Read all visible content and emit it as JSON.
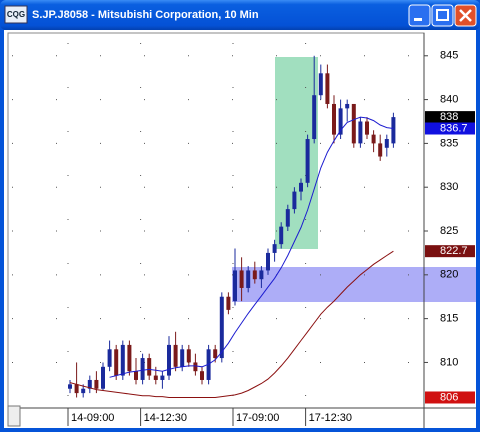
{
  "chart_data": {
    "type": "candlestick",
    "title": "S.JP.J8058 - Mitsubishi Corporation, 10 Min",
    "categories": [
      "14-09:00",
      null,
      null,
      null,
      null,
      null,
      null,
      null,
      null,
      null,
      null,
      "14-12:30",
      null,
      null,
      null,
      null,
      null,
      null,
      null,
      null,
      null,
      null,
      null,
      null,
      null,
      "17-09:00",
      null,
      null,
      null,
      null,
      null,
      null,
      null,
      null,
      null,
      null,
      "17-12:30",
      null,
      null,
      null,
      null,
      null,
      null,
      null,
      null,
      null,
      null,
      null,
      null,
      null
    ],
    "open": [
      807,
      807.5,
      806.5,
      807,
      808,
      807,
      809.5,
      811.5,
      808.5,
      812,
      809,
      808,
      810.5,
      808.5,
      808,
      808.5,
      812,
      809.5,
      811.5,
      810,
      809,
      808,
      811.5,
      810.5,
      817.5,
      817,
      820.5,
      818.5,
      820.5,
      819.5,
      820.5,
      822.5,
      823.5,
      825.5,
      827.5,
      829.5,
      830.5,
      835.5,
      840.5,
      843,
      839.5,
      836,
      839,
      839.5,
      835,
      837.5,
      836,
      835,
      834.5,
      835
    ],
    "high": [
      808,
      810,
      807.5,
      808.5,
      809,
      810,
      812.5,
      812,
      812.5,
      812.5,
      810.5,
      811,
      811,
      809.5,
      809,
      813,
      813.5,
      812,
      812,
      811,
      809.5,
      812,
      812,
      818,
      818,
      823,
      822,
      821,
      821.5,
      821,
      823,
      824,
      826,
      828,
      830,
      831,
      836,
      845,
      844,
      844,
      840.5,
      840,
      840,
      839.5,
      838,
      838,
      836.5,
      836,
      836,
      838.5
    ],
    "low": [
      806.5,
      806,
      806,
      806.5,
      806.5,
      806.8,
      809,
      808,
      808,
      808.5,
      807.5,
      807.5,
      808,
      807.5,
      807,
      808,
      809,
      809,
      809.5,
      808.5,
      807.5,
      807.5,
      810,
      810,
      815.5,
      816.5,
      817,
      818,
      819,
      818.5,
      820,
      821.5,
      823,
      825,
      827,
      828.5,
      830,
      835,
      840,
      839,
      835,
      835.5,
      837.5,
      834.5,
      834.5,
      835.5,
      834,
      833,
      833.5,
      834.5
    ],
    "close": [
      807.5,
      806.5,
      807,
      808,
      807,
      809.5,
      811.5,
      808.5,
      812,
      809,
      808,
      810.5,
      808.5,
      808,
      808.5,
      812,
      809.5,
      811.5,
      810,
      809,
      808,
      811.5,
      810.5,
      817.5,
      816,
      820.5,
      818.5,
      820.5,
      819.5,
      820.5,
      822.5,
      823.5,
      825.5,
      827.5,
      829.5,
      830.5,
      835.5,
      840.5,
      843,
      839.5,
      836,
      839,
      839.5,
      835,
      837.5,
      836,
      835,
      833.5,
      835.5,
      838
    ],
    "up_color": "#1a2a9c",
    "down_color": "#7a1a1a",
    "lines": [
      {
        "color": "#1c1cd0",
        "values": [
          null,
          null,
          null,
          null,
          null,
          null,
          808.3,
          808.5,
          808.7,
          808.9,
          809,
          809.1,
          809.2,
          809.1,
          809,
          809.2,
          809.4,
          809.5,
          809.6,
          809.6,
          809.5,
          809.8,
          810.3,
          811.2,
          812.2,
          813.4,
          814.5,
          815.6,
          816.6,
          817.6,
          818.6,
          819.6,
          820.8,
          822.2,
          823.8,
          825.4,
          827.4,
          829.8,
          832.2,
          834,
          835.3,
          836.5,
          837.4,
          837.7,
          838,
          837.9,
          837.6,
          837.1,
          836.8,
          836.7
        ]
      },
      {
        "color": "#8b1010",
        "values": [
          807.7,
          807.5,
          807.3,
          807.1,
          806.9,
          806.8,
          806.7,
          806.6,
          806.5,
          806.4,
          806.3,
          806.2,
          806.2,
          806.1,
          806.1,
          806,
          806,
          806,
          806,
          806,
          806,
          806,
          806,
          806.1,
          806.2,
          806.3,
          806.5,
          806.8,
          807.2,
          807.6,
          808.1,
          808.8,
          809.6,
          810.5,
          811.5,
          812.5,
          813.5,
          814.5,
          815.5,
          816.3,
          817,
          817.8,
          818.6,
          819.3,
          820,
          820.6,
          821.2,
          821.7,
          822.2,
          822.7
        ]
      }
    ],
    "price_labels": [
      {
        "value": 838,
        "color": "#000000"
      },
      {
        "value": 836.7,
        "color": "#1010e0"
      },
      {
        "value": 822.7,
        "color": "#7a1010"
      },
      {
        "value": 806,
        "color": "#d01010"
      }
    ],
    "ylim": [
      804.8,
      847.6
    ],
    "yticks": [
      810,
      815,
      820,
      825,
      830,
      835,
      840,
      845
    ],
    "grid": true
  }
}
